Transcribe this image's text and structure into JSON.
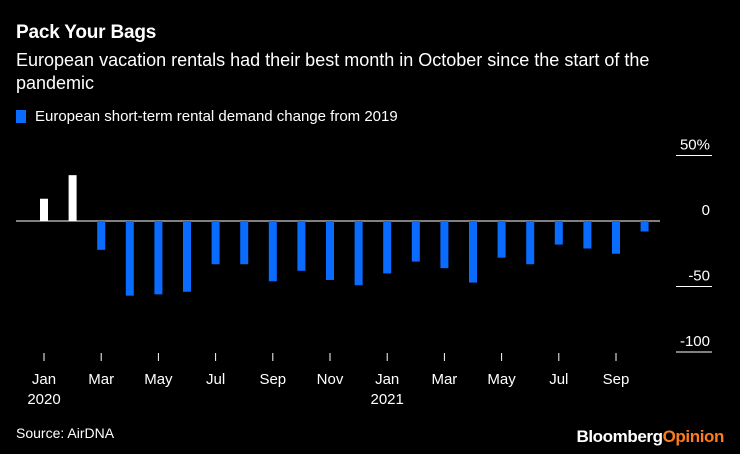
{
  "header": {
    "title": "Pack Your Bags",
    "subtitle": "European vacation rentals had their best month in October since the start of the pandemic"
  },
  "legend": {
    "label": "European short-term rental demand change from 2019",
    "color": "#0a6cff"
  },
  "footer": {
    "source": "Source: AirDNA",
    "brand_main": "Bloomberg",
    "brand_accent": "Opinion"
  },
  "colors": {
    "positive": "#ffffff",
    "negative": "#0a6cff",
    "accent_brand": "#ff7a1a"
  },
  "chart_data": {
    "type": "bar",
    "title": "Pack Your Bags",
    "xlabel": "",
    "ylabel": "",
    "ylim": [
      -100,
      50
    ],
    "yticks": [
      50,
      0,
      -50,
      -100
    ],
    "ytick_labels": [
      "50%",
      "0",
      "-50",
      "-100"
    ],
    "categories": [
      "Jan 2020",
      "Feb 2020",
      "Mar 2020",
      "Apr 2020",
      "May 2020",
      "Jun 2020",
      "Jul 2020",
      "Aug 2020",
      "Sep 2020",
      "Oct 2020",
      "Nov 2020",
      "Dec 2020",
      "Jan 2021",
      "Feb 2021",
      "Mar 2021",
      "Apr 2021",
      "May 2021",
      "Jun 2021",
      "Jul 2021",
      "Aug 2021",
      "Sep 2021",
      "Oct 2021"
    ],
    "values": [
      17,
      35,
      -22,
      -57,
      -56,
      -54,
      -33,
      -33,
      -46,
      -38,
      -45,
      -49,
      -40,
      -31,
      -36,
      -47,
      -28,
      -33,
      -18,
      -21,
      -25,
      -8
    ],
    "xtick_labels": [
      {
        "index": 0,
        "month": "Jan",
        "year": "2020"
      },
      {
        "index": 2,
        "month": "Mar",
        "year": ""
      },
      {
        "index": 4,
        "month": "May",
        "year": ""
      },
      {
        "index": 6,
        "month": "Jul",
        "year": ""
      },
      {
        "index": 8,
        "month": "Sep",
        "year": ""
      },
      {
        "index": 10,
        "month": "Nov",
        "year": ""
      },
      {
        "index": 12,
        "month": "Jan",
        "year": "2021"
      },
      {
        "index": 14,
        "month": "Mar",
        "year": ""
      },
      {
        "index": 16,
        "month": "May",
        "year": ""
      },
      {
        "index": 18,
        "month": "Jul",
        "year": ""
      },
      {
        "index": 20,
        "month": "Sep",
        "year": ""
      }
    ],
    "legend": [
      "European short-term rental demand change from 2019"
    ],
    "grid": false
  }
}
